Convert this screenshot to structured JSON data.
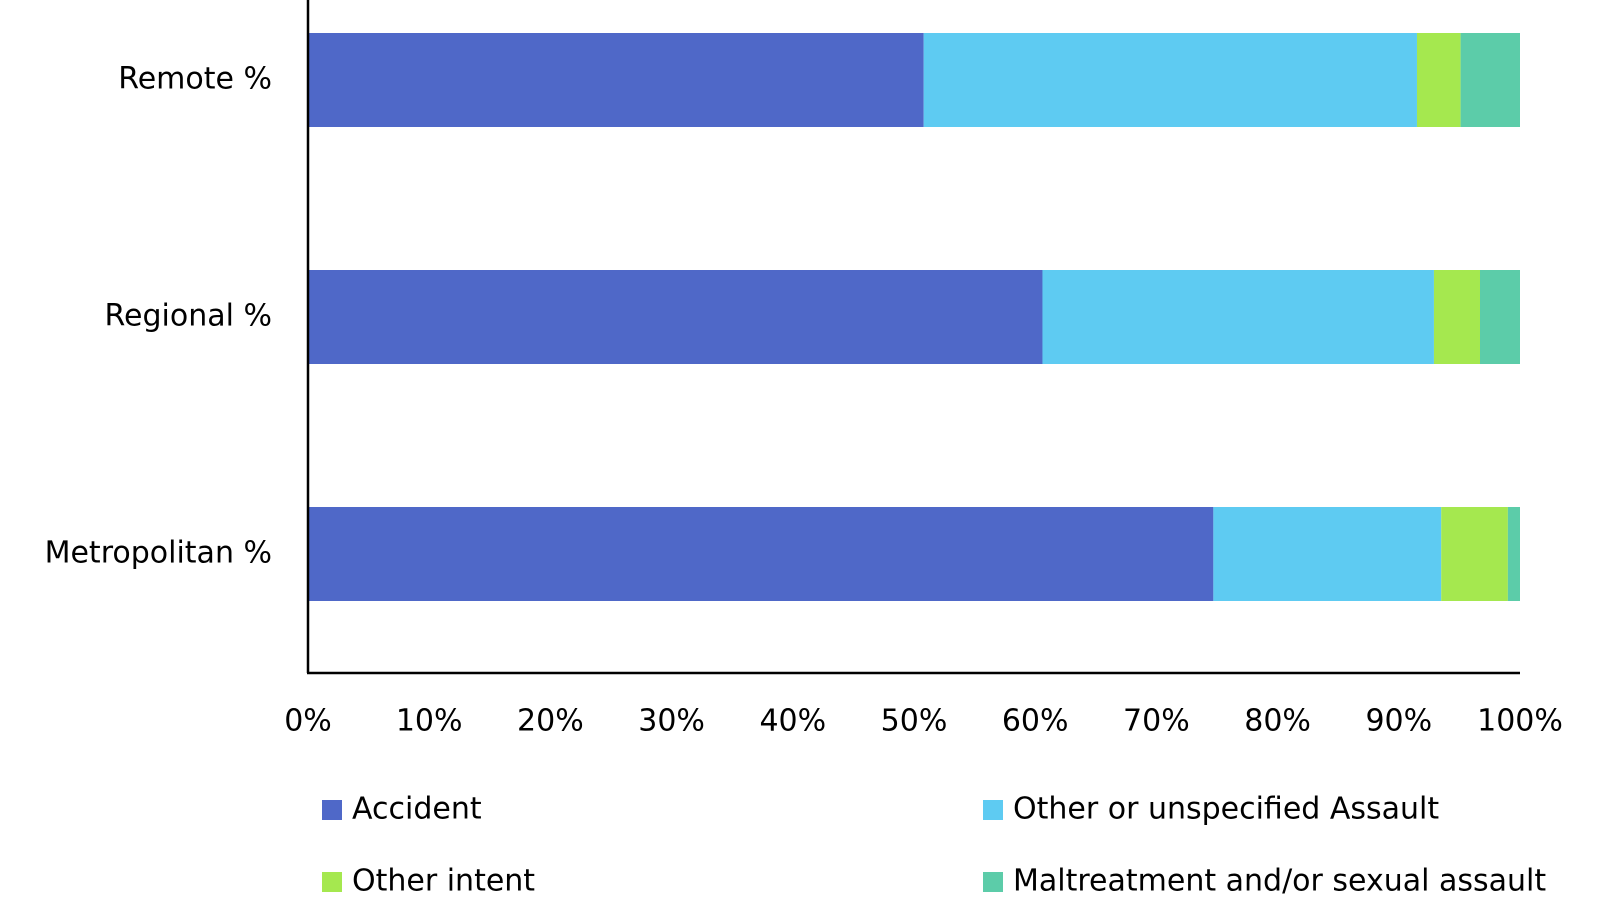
{
  "chart_data": {
    "type": "bar",
    "orientation": "horizontal",
    "stacked": true,
    "categories": [
      "Remote %",
      "Regional %",
      "Metropolitan %"
    ],
    "series": [
      {
        "name": "Accident",
        "color": "#4f68c8",
        "values": [
          50.8,
          60.6,
          74.7
        ]
      },
      {
        "name": "Other or unspecified Assault",
        "color": "#5ecbf2",
        "values": [
          40.7,
          32.3,
          18.8
        ]
      },
      {
        "name": "Other intent",
        "color": "#a5e84f",
        "values": [
          3.6,
          3.8,
          5.5
        ]
      },
      {
        "name": "Maltreatment and/or sexual assault",
        "color": "#5ccca9",
        "values": [
          4.9,
          3.3,
          1.0
        ]
      }
    ],
    "xlim": [
      0,
      100
    ],
    "xticks": [
      "0%",
      "10%",
      "20%",
      "30%",
      "40%",
      "50%",
      "60%",
      "70%",
      "80%",
      "90%",
      "100%"
    ],
    "title": "",
    "xlabel": "",
    "ylabel": "",
    "grid": false,
    "legend_position": "bottom"
  }
}
